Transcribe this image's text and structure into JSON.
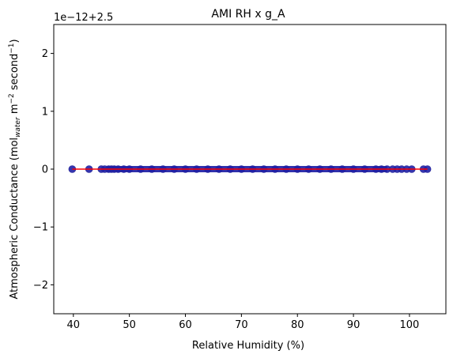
{
  "chart_data": {
    "type": "scatter",
    "title": "AMI RH x g_A",
    "xlabel": "Relative Humidity (%)",
    "ylabel_parts": {
      "prefix": "Atmospheric Conductance (mol",
      "sub": "water",
      "mid1": " m",
      "sup1": "−2",
      "mid2": " second",
      "sup2": "−1",
      "suffix": ")"
    },
    "offset_label": "1e−12+2.5",
    "xlim": [
      36.5,
      106.5
    ],
    "ylim": [
      -2.5,
      2.5
    ],
    "xticks": [
      40,
      50,
      60,
      70,
      80,
      90,
      100
    ],
    "xtick_labels": [
      "40",
      "50",
      "60",
      "70",
      "80",
      "90",
      "100"
    ],
    "yticks": [
      -2,
      -1,
      0,
      1,
      2
    ],
    "ytick_labels": [
      "−2",
      "−1",
      "0",
      "1",
      "2"
    ],
    "grid": false,
    "colors": {
      "points": "#1f1fa6",
      "line": "#ff0000"
    },
    "series": [
      {
        "x": [
          39.8,
          42.8,
          45.0,
          45.6,
          46.3,
          46.8,
          47.3,
          48.0,
          49.0,
          50.0,
          52.0,
          54.0,
          56.0,
          58.0,
          60.0,
          62.0,
          64.0,
          66.0,
          68.0,
          70.0,
          72.0,
          74.0,
          76.0,
          78.0,
          80.0,
          82.0,
          84.0,
          86.0,
          88.0,
          90.0,
          92.0,
          94.0,
          95.0,
          96.0,
          97.0,
          97.8,
          98.6,
          99.5,
          100.4,
          102.5,
          103.2
        ],
        "y": [
          0,
          0,
          0,
          0,
          0,
          0,
          0,
          0,
          0,
          0,
          0,
          0,
          0,
          0,
          0,
          0,
          0,
          0,
          0,
          0,
          0,
          0,
          0,
          0,
          0,
          0,
          0,
          0,
          0,
          0,
          0,
          0,
          0,
          0,
          0,
          0,
          0,
          0,
          0,
          0,
          0
        ]
      }
    ],
    "fit_line": {
      "x": [
        39.8,
        103.2
      ],
      "y": [
        0,
        0
      ]
    }
  }
}
